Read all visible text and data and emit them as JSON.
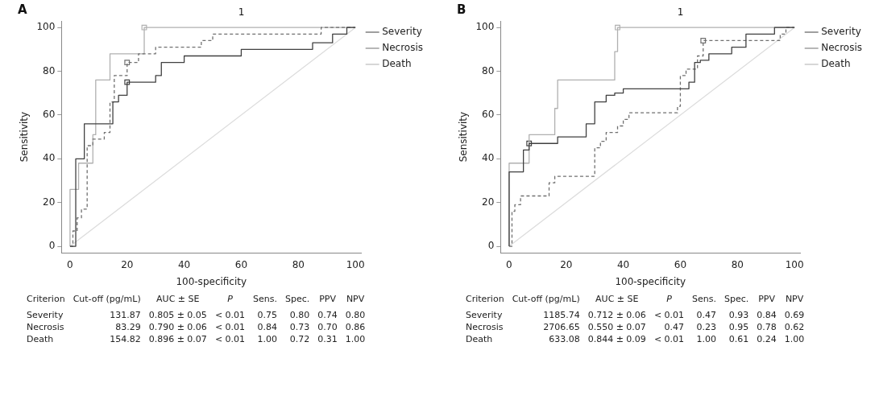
{
  "chart_data": [
    {
      "type": "step",
      "xlabel": "100-specificity",
      "ylabel": "Sensitivity",
      "xlim": [
        -3,
        102
      ],
      "ylim": [
        -3,
        103
      ],
      "xticks": [
        0,
        20,
        40,
        60,
        80,
        100
      ],
      "yticks": [
        0,
        20,
        40,
        60,
        80,
        100
      ],
      "grid": false,
      "legend": "top right",
      "marker": "none",
      "annotations": [
        "A",
        "1",
        "Criterion",
        "Cut-off (pg/mL)",
        "AUC ± SE",
        "P",
        "Sens.",
        "Spec.",
        "PPV",
        "NPV",
        "Severity",
        "131.87",
        "0.805 ± 0.05",
        "< 0.01",
        "0.75",
        "0.80",
        "0.74",
        "0.80",
        "Necrosis",
        "83.29",
        "0.790 ± 0.06",
        "< 0.01",
        "0.84",
        "0.73",
        "0.70",
        "0.86",
        "Death",
        "154.82",
        "0.896 ± 0.07",
        "< 0.01",
        "1.00",
        "0.72",
        "0.31",
        "1.00"
      ],
      "series": [
        {
          "name": "Severity",
          "type": "step",
          "color": "#404040",
          "line_style": "solid",
          "x": [
            0,
            2,
            2,
            5,
            15,
            17,
            20,
            30,
            32,
            40,
            60,
            85,
            92,
            97,
            100
          ],
          "values": [
            0,
            9,
            40,
            56,
            66,
            69,
            75,
            78,
            84,
            87,
            90,
            93,
            97,
            100,
            100
          ]
        },
        {
          "name": "Necrosis",
          "type": "step",
          "color": "#707070",
          "line_style": "dashed",
          "x": [
            0,
            1,
            2.5,
            4,
            6,
            8,
            12,
            14,
            15.5,
            20,
            24,
            30,
            46,
            50,
            88,
            100
          ],
          "values": [
            0,
            7,
            13,
            17,
            46,
            49,
            52,
            66,
            78,
            84,
            88,
            91,
            94,
            97,
            100,
            100
          ]
        },
        {
          "name": "Death",
          "type": "step",
          "color": "#b0b0b0",
          "line_style": "solid",
          "x": [
            0,
            0,
            3,
            8,
            9,
            14,
            26,
            100
          ],
          "values": [
            0,
            26,
            38,
            51,
            76,
            88,
            100,
            100
          ]
        },
        {
          "type": "line",
          "color": "#dcdcdc",
          "line_style": "solid",
          "x": [
            0,
            100
          ],
          "values": [
            0,
            100
          ]
        },
        {
          "type": "scatter",
          "marker": "square",
          "color": "#404040",
          "x": [
            20
          ],
          "values": [
            75
          ]
        },
        {
          "type": "scatter",
          "marker": "square",
          "color": "#707070",
          "x": [
            20
          ],
          "values": [
            84
          ]
        },
        {
          "type": "scatter",
          "marker": "square",
          "color": "#b0b0b0",
          "x": [
            26
          ],
          "values": [
            100
          ]
        }
      ]
    },
    {
      "type": "step",
      "xlabel": "100-specificity",
      "ylabel": "Sensitivity",
      "xlim": [
        -3,
        102
      ],
      "ylim": [
        -3,
        103
      ],
      "xticks": [
        0,
        20,
        40,
        60,
        80,
        100
      ],
      "yticks": [
        0,
        20,
        40,
        60,
        80,
        100
      ],
      "grid": false,
      "legend": "top right",
      "marker": "none",
      "annotations": [
        "B",
        "1",
        "Criterion",
        "Cut-off (pg/mL)",
        "AUC ± SE",
        "P",
        "Sens.",
        "Spec.",
        "PPV",
        "NPV",
        "Severity",
        "1185.74",
        "0.712 ± 0.06",
        "< 0.01",
        "0.47",
        "0.93",
        "0.84",
        "0.69",
        "Necrosis",
        "2706.65",
        "0.550 ± 0.07",
        "0.47",
        "0.23",
        "0.95",
        "0.78",
        "0.62",
        "Death",
        "633.08",
        "0.844 ± 0.09",
        "< 0.01",
        "1.00",
        "0.61",
        "0.24",
        "1.00"
      ],
      "series": [
        {
          "name": "Severity",
          "type": "step",
          "color": "#404040",
          "line_style": "solid",
          "x": [
            0,
            0,
            5,
            7,
            17,
            27,
            30,
            34,
            37,
            40,
            63,
            65,
            67,
            70,
            78,
            83,
            93,
            100
          ],
          "values": [
            0,
            34,
            44,
            47,
            50,
            56,
            66,
            69,
            70,
            72,
            75,
            84,
            85,
            88,
            91,
            97,
            100,
            100
          ]
        },
        {
          "name": "Necrosis",
          "type": "step",
          "color": "#707070",
          "line_style": "dashed",
          "x": [
            0,
            1,
            2,
            4,
            14,
            16,
            30,
            32,
            34,
            38,
            40,
            42,
            59,
            60,
            62,
            66,
            68,
            95,
            97,
            100
          ],
          "values": [
            0,
            16,
            19,
            23,
            29,
            32,
            45,
            48,
            52,
            55,
            58,
            61,
            64,
            78,
            81,
            87,
            94,
            97,
            100,
            100
          ]
        },
        {
          "name": "Death",
          "type": "step",
          "color": "#b0b0b0",
          "line_style": "solid",
          "x": [
            0,
            0,
            7,
            16,
            17,
            37,
            38,
            100
          ],
          "values": [
            0,
            38,
            51,
            63,
            76,
            89,
            100,
            100
          ]
        },
        {
          "type": "line",
          "color": "#dcdcdc",
          "line_style": "solid",
          "x": [
            0,
            100
          ],
          "values": [
            0,
            100
          ]
        },
        {
          "type": "scatter",
          "marker": "square",
          "color": "#404040",
          "x": [
            7
          ],
          "values": [
            47
          ]
        },
        {
          "type": "scatter",
          "marker": "square",
          "color": "#707070",
          "x": [
            68
          ],
          "values": [
            94
          ]
        },
        {
          "type": "scatter",
          "marker": "square",
          "color": "#b0b0b0",
          "x": [
            38
          ],
          "values": [
            100
          ]
        }
      ]
    }
  ]
}
